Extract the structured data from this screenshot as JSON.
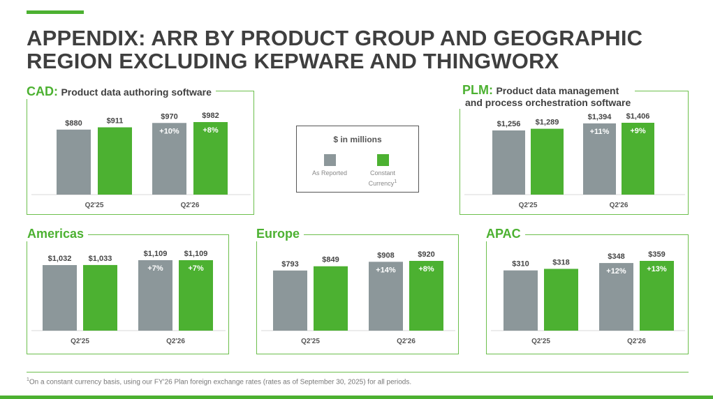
{
  "page": {
    "title": "APPENDIX: ARR BY PRODUCT GROUP AND GEOGRAPHIC REGION EXCLUDING KEPWARE AND THINGWORX"
  },
  "legend": {
    "title": "$ in millions",
    "as_reported": "As Reported",
    "constant_currency": "Constant Currency",
    "constant_currency_sup": "1"
  },
  "colors": {
    "as_reported": "#8c979a",
    "constant_currency": "#4cb131",
    "accent": "#4cb131"
  },
  "panels": {
    "cad": {
      "title": "CAD:",
      "subtitle": "Product data authoring software"
    },
    "plm": {
      "title": "PLM:",
      "subtitle_line1": "Product data management",
      "subtitle_line2": "and process orchestration software"
    },
    "americas": {
      "title": "Americas"
    },
    "europe": {
      "title": "Europe"
    },
    "apac": {
      "title": "APAC"
    }
  },
  "footnote": {
    "marker": "1",
    "text": "On a constant currency basis, using our FY'26 Plan foreign exchange rates (rates as of September 30, 2025) for all periods."
  },
  "chart_data": [
    {
      "id": "cad",
      "type": "bar",
      "title": "CAD: Product data authoring software",
      "categories": [
        "Q2'25",
        "Q2'26"
      ],
      "series": [
        {
          "name": "As Reported",
          "values": [
            880,
            970
          ],
          "labels": [
            "$880",
            "$970"
          ],
          "growth": [
            null,
            "+10%"
          ]
        },
        {
          "name": "Constant Currency",
          "values": [
            911,
            982
          ],
          "labels": [
            "$911",
            "$982"
          ],
          "growth": [
            null,
            "+8%"
          ]
        }
      ]
    },
    {
      "id": "plm",
      "type": "bar",
      "title": "PLM: Product data management and process orchestration software",
      "categories": [
        "Q2'25",
        "Q2'26"
      ],
      "series": [
        {
          "name": "As Reported",
          "values": [
            1256,
            1394
          ],
          "labels": [
            "$1,256",
            "$1,394"
          ],
          "growth": [
            null,
            "+11%"
          ]
        },
        {
          "name": "Constant Currency",
          "values": [
            1289,
            1406
          ],
          "labels": [
            "$1,289",
            "$1,406"
          ],
          "growth": [
            null,
            "+9%"
          ]
        }
      ]
    },
    {
      "id": "americas",
      "type": "bar",
      "title": "Americas",
      "categories": [
        "Q2'25",
        "Q2'26"
      ],
      "series": [
        {
          "name": "As Reported",
          "values": [
            1032,
            1109
          ],
          "labels": [
            "$1,032",
            "$1,109"
          ],
          "growth": [
            null,
            "+7%"
          ]
        },
        {
          "name": "Constant Currency",
          "values": [
            1033,
            1109
          ],
          "labels": [
            "$1,033",
            "$1,109"
          ],
          "growth": [
            null,
            "+7%"
          ]
        }
      ]
    },
    {
      "id": "europe",
      "type": "bar",
      "title": "Europe",
      "categories": [
        "Q2'25",
        "Q2'26"
      ],
      "series": [
        {
          "name": "As Reported",
          "values": [
            793,
            908
          ],
          "labels": [
            "$793",
            "$908"
          ],
          "growth": [
            null,
            "+14%"
          ]
        },
        {
          "name": "Constant Currency",
          "values": [
            849,
            920
          ],
          "labels": [
            "$849",
            "$920"
          ],
          "growth": [
            null,
            "+8%"
          ]
        }
      ]
    },
    {
      "id": "apac",
      "type": "bar",
      "title": "APAC",
      "categories": [
        "Q2'25",
        "Q2'26"
      ],
      "series": [
        {
          "name": "As Reported",
          "values": [
            310,
            348
          ],
          "labels": [
            "$310",
            "$348"
          ],
          "growth": [
            null,
            "+12%"
          ]
        },
        {
          "name": "Constant Currency",
          "values": [
            318,
            359
          ],
          "labels": [
            "$318",
            "$359"
          ],
          "growth": [
            null,
            "+13%"
          ]
        }
      ]
    }
  ]
}
